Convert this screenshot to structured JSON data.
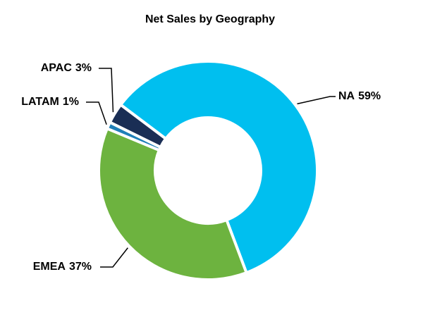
{
  "chart_data": {
    "type": "donut",
    "title": "Net Sales by Geography",
    "categories": [
      "NA",
      "EMEA",
      "LATAM",
      "APAC"
    ],
    "values": [
      59,
      37,
      1,
      3
    ],
    "value_labels": [
      "59%",
      "37%",
      "1%",
      "3%"
    ],
    "colors": [
      "#00bfef",
      "#6db33f",
      "#1f7fb8",
      "#1a2e55"
    ]
  }
}
